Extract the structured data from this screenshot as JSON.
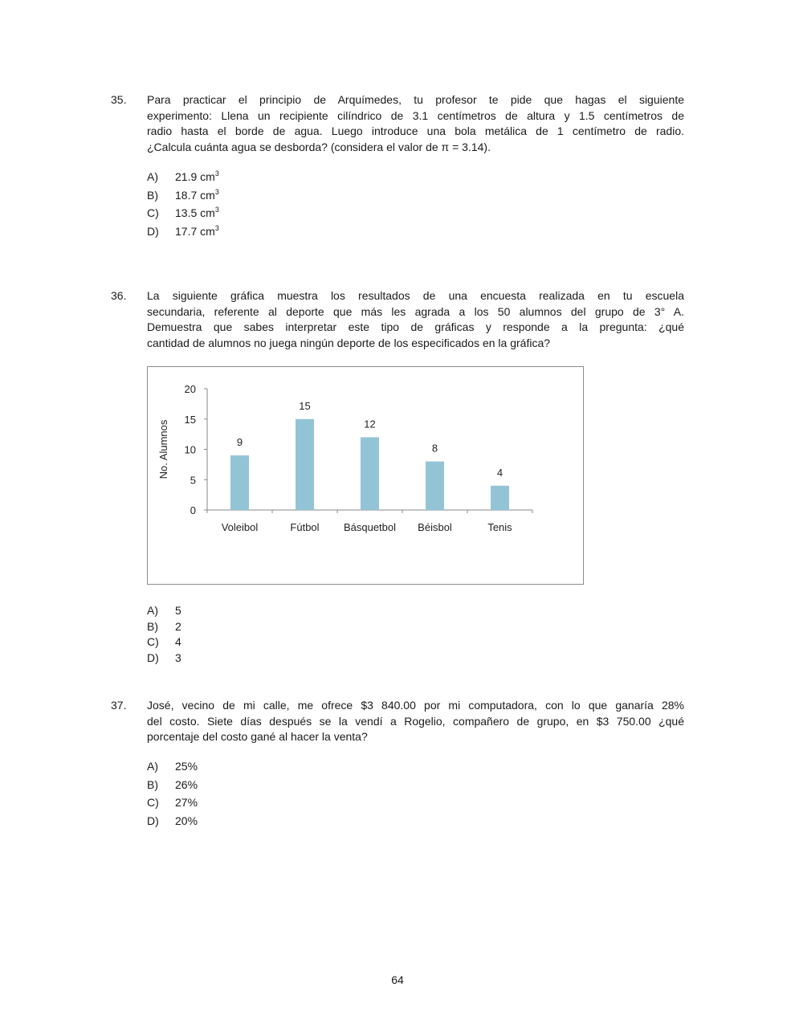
{
  "questions": [
    {
      "number": "35.",
      "lines": [
        "Para practicar el principio de Arquímedes, tu profesor te pide que hagas el siguiente",
        "experimento: Llena un recipiente cilíndrico de 3.1 centímetros de altura y 1.5 centímetros de",
        "radio hasta el borde de agua. Luego introduce una bola metálica de 1 centímetro de radio.",
        "¿Calcula cuánta agua se desborda? (considera el valor de π = 3.14)."
      ],
      "options": [
        {
          "letter": "A)",
          "text": "21.9 cm",
          "sup": "3"
        },
        {
          "letter": "B)",
          "text": "18.7 cm",
          "sup": "3"
        },
        {
          "letter": "C)",
          "text": "13.5 cm",
          "sup": "3"
        },
        {
          "letter": "D)",
          "text": "17.7 cm",
          "sup": "3"
        }
      ]
    },
    {
      "number": "36.",
      "lines": [
        "La siguiente gráfica muestra los resultados de una encuesta realizada en tu escuela",
        "secundaria, referente al deporte que más les agrada a los 50 alumnos del grupo de 3° A.",
        "Demuestra que sabes interpretar este tipo de gráficas y responde a la pregunta: ¿qué",
        "cantidad de alumnos no juega ningún deporte de los especificados en la gráfica?"
      ],
      "options": [
        {
          "letter": "A)",
          "text": "5"
        },
        {
          "letter": "B)",
          "text": "2"
        },
        {
          "letter": "C)",
          "text": "4"
        },
        {
          "letter": "D)",
          "text": "3"
        }
      ]
    },
    {
      "number": "37.",
      "lines": [
        "José, vecino de mi calle, me ofrece $3 840.00 por mi computadora, con lo que ganaría 28%",
        "del costo. Siete días después se la vendí a Rogelio, compañero de grupo, en $3 750.00 ¿qué",
        "porcentaje  del costo gané al hacer la venta?"
      ],
      "options": [
        {
          "letter": "A)",
          "text": "25%"
        },
        {
          "letter": "B)",
          "text": "26%"
        },
        {
          "letter": "C)",
          "text": "27%"
        },
        {
          "letter": "D)",
          "text": "20%"
        }
      ]
    }
  ],
  "chart_data": {
    "type": "bar",
    "categories": [
      "Voleibol",
      "Fútbol",
      "Básquetbol",
      "Béisbol",
      "Tenis"
    ],
    "values": [
      9,
      15,
      12,
      8,
      4
    ],
    "data_labels": [
      "9",
      "15",
      "12",
      "8",
      "4"
    ],
    "ylabel": "No. Alumnos",
    "xlabel": "",
    "ylim": [
      0,
      20
    ],
    "yticks": [
      0,
      5,
      10,
      15,
      20
    ],
    "bar_color": "#93c4d6",
    "grid": false,
    "legend": "none"
  },
  "page_number": "64"
}
